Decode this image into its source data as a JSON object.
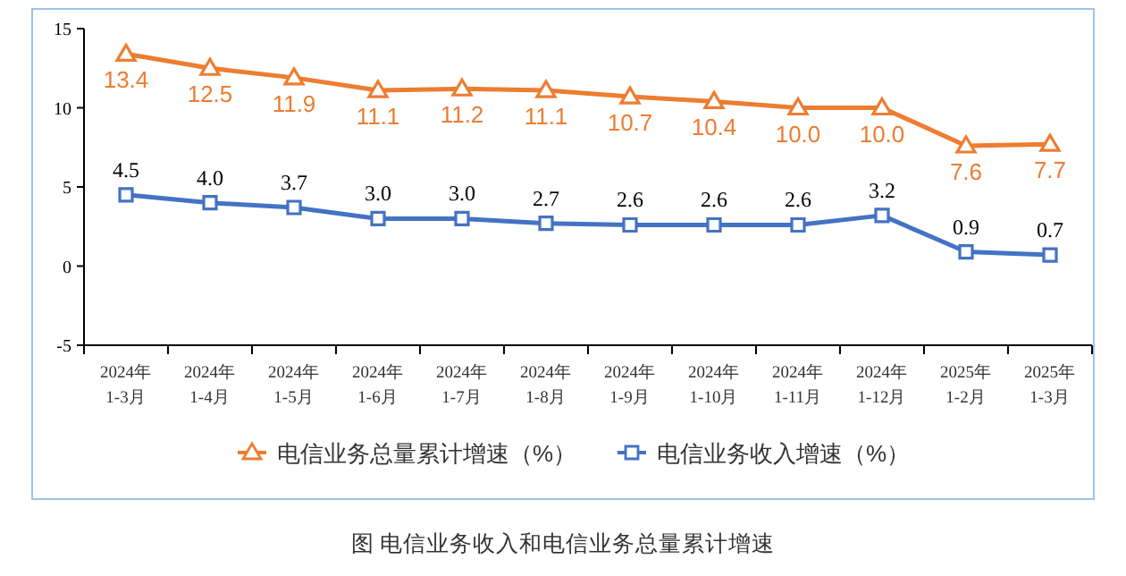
{
  "chart_data": {
    "type": "line",
    "title": "图  电信业务收入和电信业务总量累计增速",
    "categories": [
      "2024年\n1-3月",
      "2024年\n1-4月",
      "2024年\n1-5月",
      "2024年\n1-6月",
      "2024年\n1-7月",
      "2024年\n1-8月",
      "2024年\n1-9月",
      "2024年\n1-10月",
      "2024年\n1-11月",
      "2024年\n1-12月",
      "2025年\n1-2月",
      "2025年\n1-3月"
    ],
    "series": [
      {
        "name": "电信业务总量累计增速（%）",
        "color": "#ed7d31",
        "marker": "triangle",
        "values": [
          13.4,
          12.5,
          11.9,
          11.1,
          11.2,
          11.1,
          10.7,
          10.4,
          10.0,
          10.0,
          7.6,
          7.7
        ],
        "value_labels": [
          "13.4",
          "12.5",
          "11.9",
          "11.1",
          "11.2",
          "11.1",
          "10.7",
          "10.4",
          "10.0",
          "10.0",
          "7.6",
          "7.7"
        ]
      },
      {
        "name": "电信业务收入增速（%）",
        "color": "#4472c4",
        "marker": "square",
        "values": [
          4.5,
          4.0,
          3.7,
          3.0,
          3.0,
          2.7,
          2.6,
          2.6,
          2.6,
          3.2,
          0.9,
          0.7
        ],
        "value_labels": [
          "4.5",
          "4.0",
          "3.7",
          "3.0",
          "3.0",
          "2.7",
          "2.6",
          "2.6",
          "2.6",
          "3.2",
          "0.9",
          "0.7"
        ]
      }
    ],
    "ylim": [
      -5,
      15
    ],
    "yticks": [
      -5,
      0,
      5,
      10,
      15
    ],
    "grid": false,
    "legend": "bottom",
    "line_style": "solid"
  }
}
